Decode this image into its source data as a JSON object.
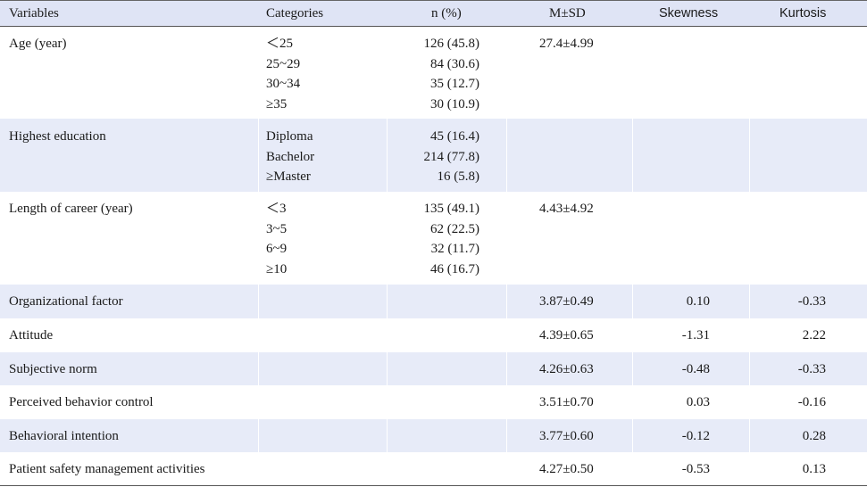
{
  "headers": {
    "variables": "Variables",
    "categories": "Categories",
    "n": "n (%)",
    "msd": "M±SD",
    "skewness": "Skewness",
    "kurtosis": "Kurtosis"
  },
  "rows": [
    {
      "variable": "Age (year)",
      "categories": [
        "＜25",
        "25~29",
        "30~34",
        "≥35"
      ],
      "n": [
        "126 (45.8)",
        "84 (30.6)",
        "35 (12.7)",
        "30 (10.9)"
      ],
      "msd": "27.4±4.99",
      "skewness": "",
      "kurtosis": ""
    },
    {
      "variable": "Highest education",
      "categories": [
        "Diploma",
        "Bachelor",
        "≥Master"
      ],
      "n": [
        "45 (16.4)",
        "214 (77.8)",
        "16 (5.8)"
      ],
      "msd": "",
      "skewness": "",
      "kurtosis": ""
    },
    {
      "variable": "Length of career (year)",
      "categories": [
        "＜3",
        "3~5",
        "6~9",
        "≥10"
      ],
      "n": [
        "135 (49.1)",
        "62 (22.5)",
        "32 (11.7)",
        "46 (16.7)"
      ],
      "msd": "4.43±4.92",
      "skewness": "",
      "kurtosis": ""
    },
    {
      "variable": "Organizational factor",
      "categories": [],
      "n": [],
      "msd": "3.87±0.49",
      "skewness": "0.10",
      "kurtosis": "-0.33"
    },
    {
      "variable": "Attitude",
      "categories": [],
      "n": [],
      "msd": "4.39±0.65",
      "skewness": "-1.31",
      "kurtosis": "2.22"
    },
    {
      "variable": "Subjective norm",
      "categories": [],
      "n": [],
      "msd": "4.26±0.63",
      "skewness": "-0.48",
      "kurtosis": "-0.33"
    },
    {
      "variable": "Perceived behavior control",
      "categories": [],
      "n": [],
      "msd": "3.51±0.70",
      "skewness": "0.03",
      "kurtosis": "-0.16"
    },
    {
      "variable": "Behavioral intention",
      "categories": [],
      "n": [],
      "msd": "3.77±0.60",
      "skewness": "-0.12",
      "kurtosis": "0.28"
    },
    {
      "variable": "Patient safety management activities",
      "categories": [],
      "n": [],
      "msd": "4.27±0.50",
      "skewness": "-0.53",
      "kurtosis": "0.13"
    }
  ]
}
